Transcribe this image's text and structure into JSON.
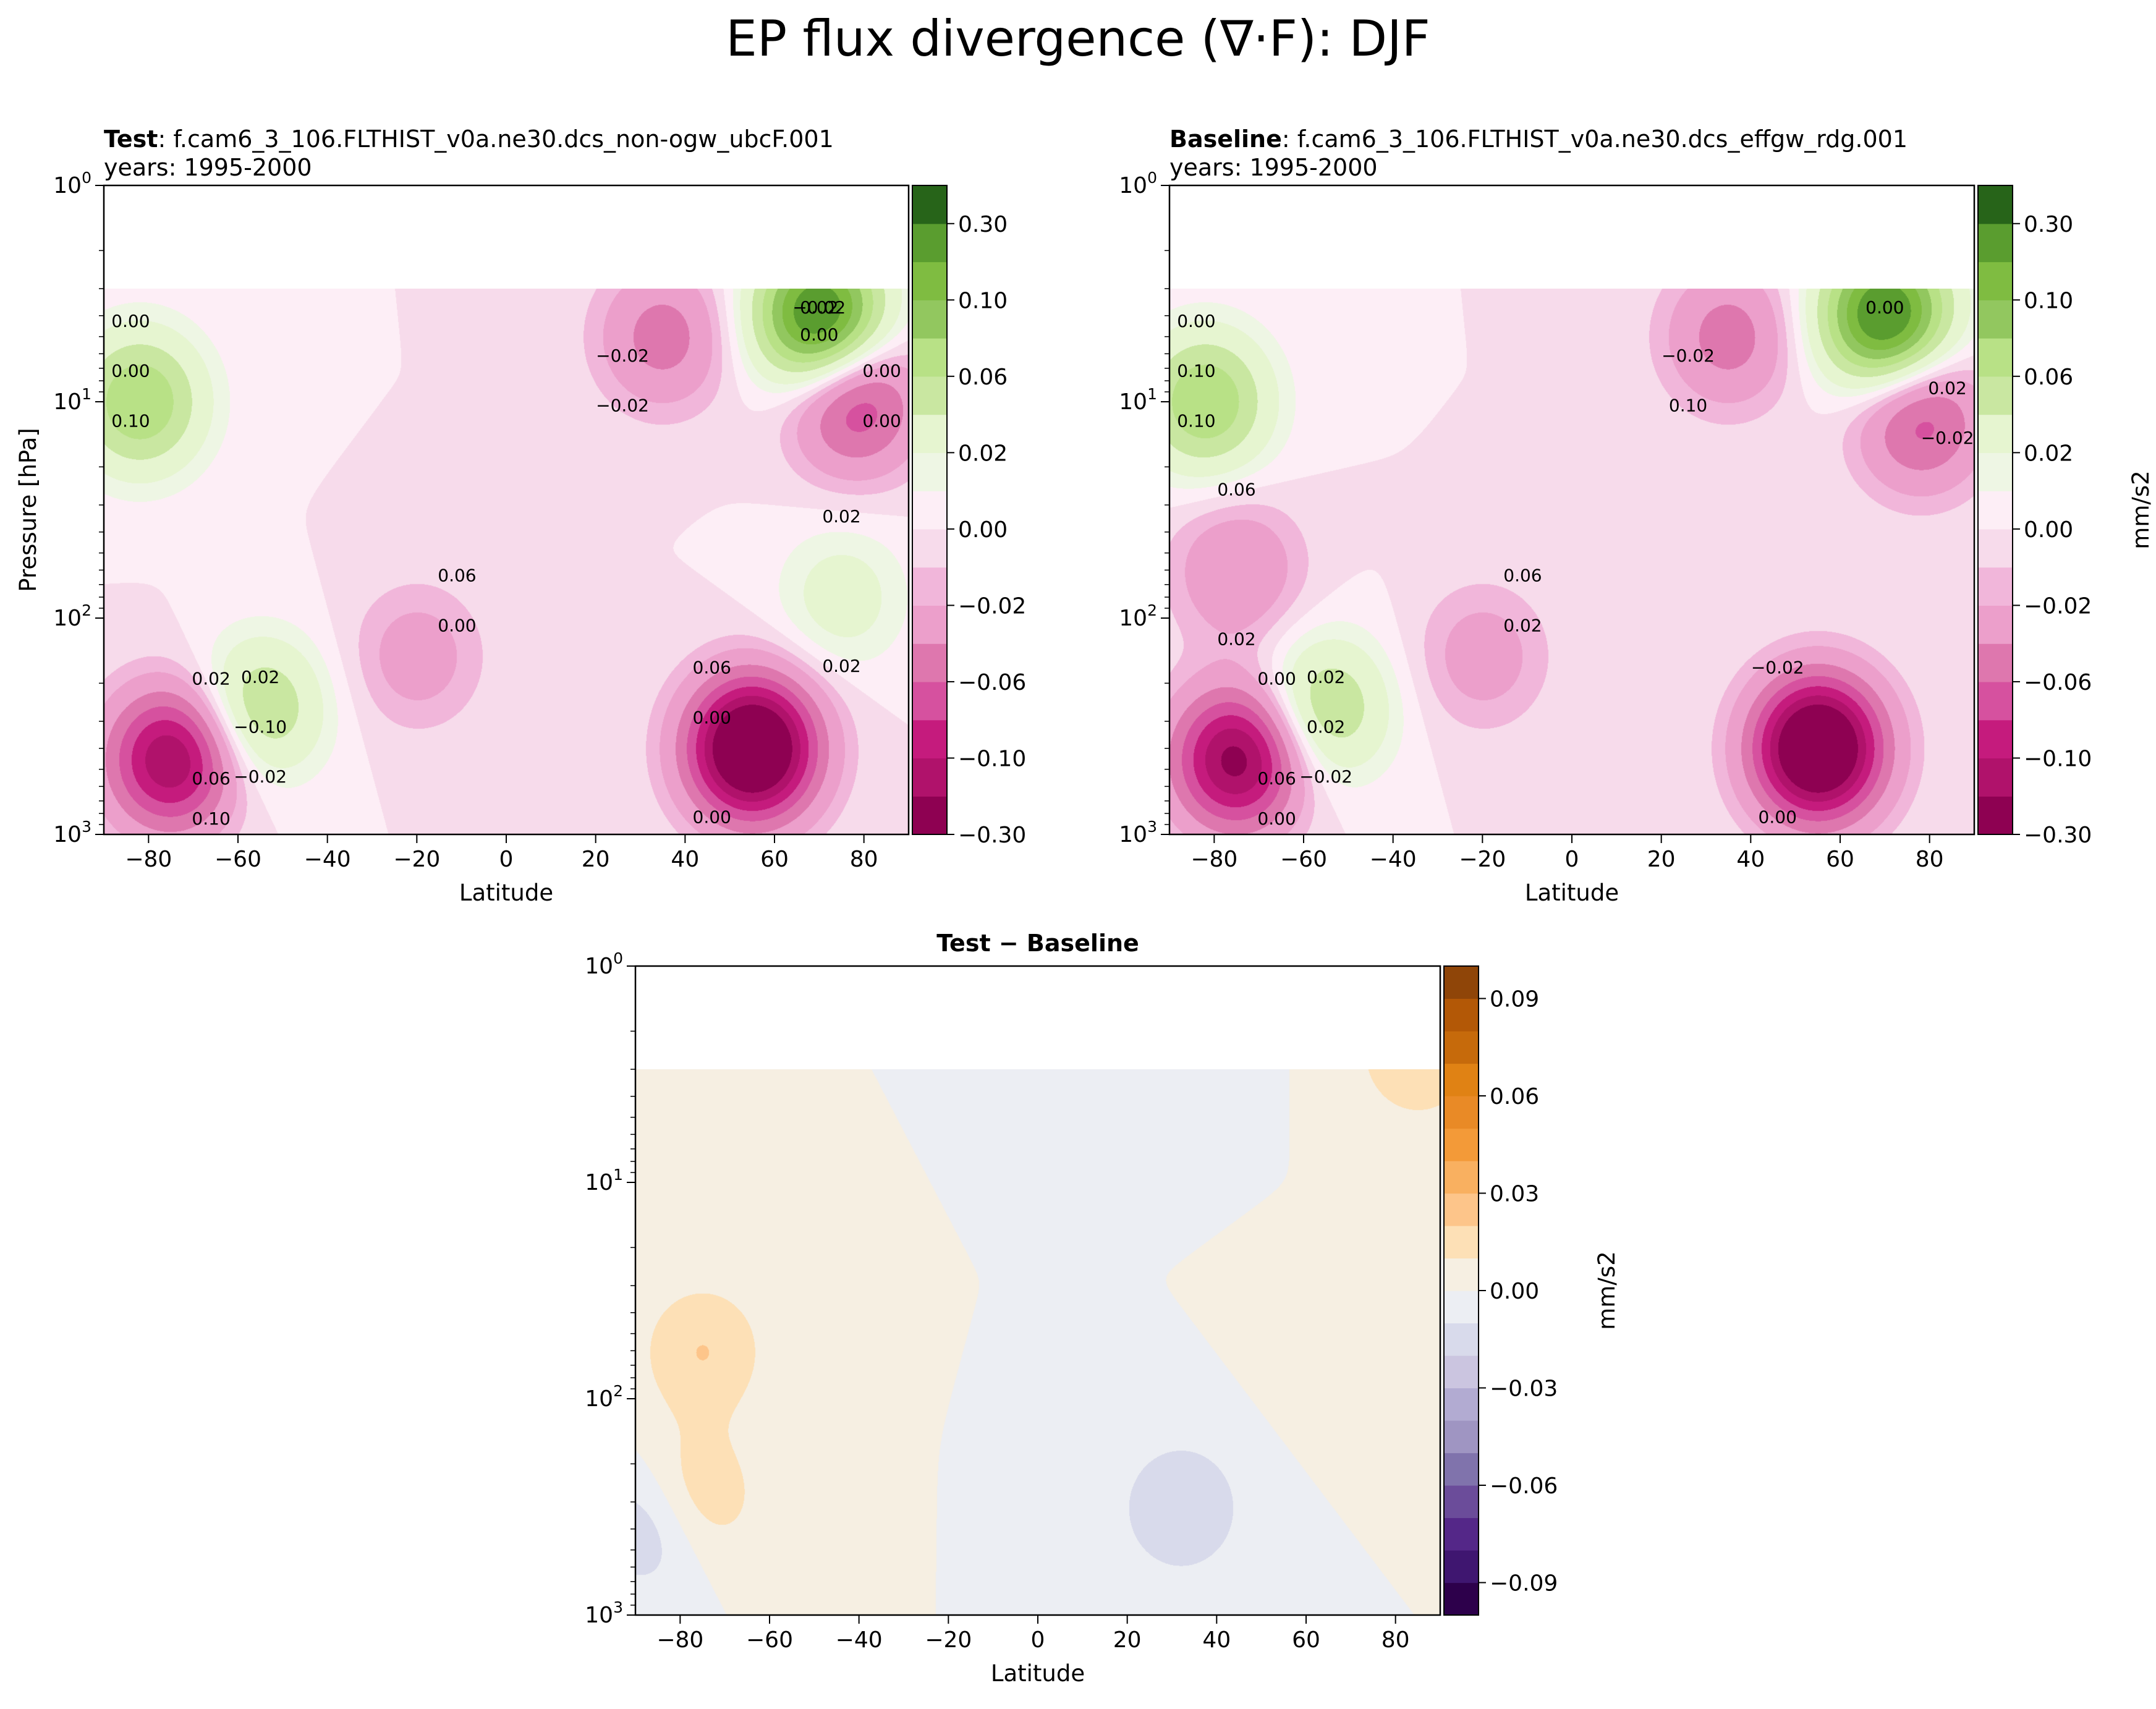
{
  "figure": {
    "title": "EP flux divergence (∇·F): DJF"
  },
  "chart_data": [
    {
      "type": "heatmap",
      "panel": "test",
      "title_bold": "Test",
      "title_rest": ": f.cam6_3_106.FLTHIST_v0a.ne30.dcs_non-ogw_ubcF.001",
      "subtitle": "years: 1995-2000",
      "xlabel": "Latitude",
      "ylabel": "Pressure [hPa]",
      "xlim": [
        -90,
        90
      ],
      "ylim": [
        1000,
        1
      ],
      "y_scale": "log",
      "x_ticks": [
        "−80",
        "−60",
        "−40",
        "−20",
        "0",
        "20",
        "40",
        "60",
        "80"
      ],
      "x_tick_values": [
        -80,
        -60,
        -40,
        -20,
        0,
        20,
        40,
        60,
        80
      ],
      "y_ticks": [
        {
          "value": 1,
          "base": "10",
          "exp": "0"
        },
        {
          "value": 10,
          "base": "10",
          "exp": "1"
        },
        {
          "value": 100,
          "base": "10",
          "exp": "2"
        },
        {
          "value": 1000,
          "base": "10",
          "exp": "3"
        }
      ],
      "colorbar": {
        "levels": [
          -0.3,
          -0.12,
          -0.1,
          -0.08,
          -0.06,
          -0.04,
          -0.02,
          -0.01,
          0.0,
          0.01,
          0.02,
          0.04,
          0.06,
          0.08,
          0.1,
          0.12,
          0.3
        ],
        "tick_labels": [
          "−0.30",
          "−0.10",
          "−0.06",
          "−0.02",
          "0.00",
          "0.02",
          "0.06",
          "0.10",
          "0.30"
        ],
        "colors": [
          "#8e0152",
          "#b0126b",
          "#c51b7d",
          "#d6519f",
          "#de77ae",
          "#ec9fcb",
          "#f1b6da",
          "#f7dbeb",
          "#fdeef6",
          "#eef6e4",
          "#e6f5d0",
          "#c9e7a1",
          "#b8e186",
          "#92c75f",
          "#7fbc41",
          "#5a9d2f",
          "#276419"
        ],
        "label": ""
      },
      "contour_labels": [
        "0.00",
        "0.02",
        "0.06",
        "0.00",
        "−0.02",
        "0.00",
        "−0.02",
        "0.02",
        "0.06",
        "0.00",
        "−0.10",
        "0.10",
        "0.06",
        "0.02",
        "0.00",
        "−0.02",
        "0.02",
        "0.00",
        "0.10",
        "−0.02",
        "0.02",
        "0.00",
        "0.00"
      ],
      "features": [
        {
          "lat": -82,
          "p": 10,
          "value": 0.08
        },
        {
          "lat": -55,
          "p": 260,
          "value": 0.06
        },
        {
          "lat": -75,
          "p": 450,
          "value": -0.12
        },
        {
          "lat": 55,
          "p": 400,
          "value": -0.18
        },
        {
          "lat": 70,
          "p": 4,
          "value": 0.15
        },
        {
          "lat": 78,
          "p": 10,
          "value": -0.08
        },
        {
          "lat": 35,
          "p": 5,
          "value": -0.05
        },
        {
          "lat": 75,
          "p": 80,
          "value": 0.03
        },
        {
          "lat": -20,
          "p": 150,
          "value": -0.03
        }
      ]
    },
    {
      "type": "heatmap",
      "panel": "baseline",
      "title_bold": "Baseline",
      "title_rest": ": f.cam6_3_106.FLTHIST_v0a.ne30.dcs_effgw_rdg.001",
      "subtitle": "years: 1995-2000",
      "xlabel": "Latitude",
      "ylabel": "",
      "xlim": [
        -90,
        90
      ],
      "ylim": [
        1000,
        1
      ],
      "y_scale": "log",
      "x_ticks": [
        "−80",
        "−60",
        "−40",
        "−20",
        "0",
        "20",
        "40",
        "60",
        "80"
      ],
      "x_tick_values": [
        -80,
        -60,
        -40,
        -20,
        0,
        20,
        40,
        60,
        80
      ],
      "y_ticks": [
        {
          "value": 1,
          "base": "10",
          "exp": "0"
        },
        {
          "value": 10,
          "base": "10",
          "exp": "1"
        },
        {
          "value": 100,
          "base": "10",
          "exp": "2"
        },
        {
          "value": 1000,
          "base": "10",
          "exp": "3"
        }
      ],
      "colorbar": {
        "levels": [
          -0.3,
          -0.12,
          -0.1,
          -0.08,
          -0.06,
          -0.04,
          -0.02,
          -0.01,
          0.0,
          0.01,
          0.02,
          0.04,
          0.06,
          0.08,
          0.1,
          0.12,
          0.3
        ],
        "tick_labels": [
          "−0.30",
          "−0.10",
          "−0.06",
          "−0.02",
          "0.00",
          "0.02",
          "0.06",
          "0.10",
          "0.30"
        ],
        "colors": [
          "#8e0152",
          "#b0126b",
          "#c51b7d",
          "#d6519f",
          "#de77ae",
          "#ec9fcb",
          "#f1b6da",
          "#f7dbeb",
          "#fdeef6",
          "#eef6e4",
          "#e6f5d0",
          "#c9e7a1",
          "#b8e186",
          "#92c75f",
          "#7fbc41",
          "#5a9d2f",
          "#276419"
        ],
        "label": "mm/s2"
      },
      "contour_labels": [
        "0.00",
        "0.02",
        "0.06",
        "0.00",
        "0.00",
        "0.02",
        "−0.02",
        "0.02",
        "0.06",
        "0.10",
        "0.02",
        "0.00",
        "−0.02",
        "0.00",
        "−0.02",
        "0.10",
        "0.06",
        "0.02",
        "0.10",
        "−0.02",
        "0.00"
      ],
      "features": [
        {
          "lat": -82,
          "p": 10,
          "value": 0.08
        },
        {
          "lat": -55,
          "p": 260,
          "value": 0.06
        },
        {
          "lat": -75,
          "p": 450,
          "value": -0.13
        },
        {
          "lat": 55,
          "p": 400,
          "value": -0.18
        },
        {
          "lat": 70,
          "p": 4,
          "value": 0.15
        },
        {
          "lat": 78,
          "p": 12,
          "value": -0.07
        },
        {
          "lat": 35,
          "p": 5,
          "value": -0.05
        },
        {
          "lat": -75,
          "p": 60,
          "value": -0.04
        },
        {
          "lat": -20,
          "p": 150,
          "value": -0.03
        }
      ]
    },
    {
      "type": "heatmap",
      "panel": "difference",
      "title_bold": "Test − Baseline",
      "title_rest": "",
      "subtitle": "",
      "xlabel": "Latitude",
      "ylabel": "",
      "xlim": [
        -90,
        90
      ],
      "ylim": [
        1000,
        1
      ],
      "y_scale": "log",
      "x_ticks": [
        "−80",
        "−60",
        "−40",
        "−20",
        "0",
        "20",
        "40",
        "60",
        "80"
      ],
      "x_tick_values": [
        -80,
        -60,
        -40,
        -20,
        0,
        20,
        40,
        60,
        80
      ],
      "y_ticks": [
        {
          "value": 1,
          "base": "10",
          "exp": "0"
        },
        {
          "value": 10,
          "base": "10",
          "exp": "1"
        },
        {
          "value": 100,
          "base": "10",
          "exp": "2"
        },
        {
          "value": 1000,
          "base": "10",
          "exp": "3"
        }
      ],
      "colorbar": {
        "levels": [
          -0.1,
          -0.09,
          -0.08,
          -0.07,
          -0.06,
          -0.05,
          -0.04,
          -0.03,
          -0.02,
          -0.01,
          0.0,
          0.01,
          0.02,
          0.03,
          0.04,
          0.05,
          0.06,
          0.07,
          0.08,
          0.09,
          0.1
        ],
        "tick_labels": [
          "−0.09",
          "−0.06",
          "−0.03",
          "0.00",
          "0.03",
          "0.06",
          "0.09"
        ],
        "tick_values": [
          -0.09,
          -0.06,
          -0.03,
          0.0,
          0.03,
          0.06,
          0.09
        ],
        "colors": [
          "#2d004b",
          "#3f1670",
          "#542788",
          "#6b4c9a",
          "#8073ac",
          "#9f95c2",
          "#b2abd2",
          "#cbc5e0",
          "#d8daeb",
          "#eceef3",
          "#f6efe2",
          "#fde0b6",
          "#fdc58a",
          "#f9b060",
          "#f39a38",
          "#e98a26",
          "#e08214",
          "#c66a0b",
          "#b35806",
          "#8f4508"
        ],
        "label": "mm/s2"
      },
      "features": [
        {
          "lat": -75,
          "p": 60,
          "value": 0.02
        },
        {
          "lat": -78,
          "p": 300,
          "value": 0.03
        },
        {
          "lat": -85,
          "p": 370,
          "value": -0.03
        },
        {
          "lat": 30,
          "p": 2.5,
          "value": -0.01
        },
        {
          "lat": 85,
          "p": 2.5,
          "value": 0.02
        },
        {
          "lat": 32,
          "p": 320,
          "value": -0.02
        },
        {
          "lat": 70,
          "p": 60,
          "value": 0.01
        }
      ]
    }
  ]
}
